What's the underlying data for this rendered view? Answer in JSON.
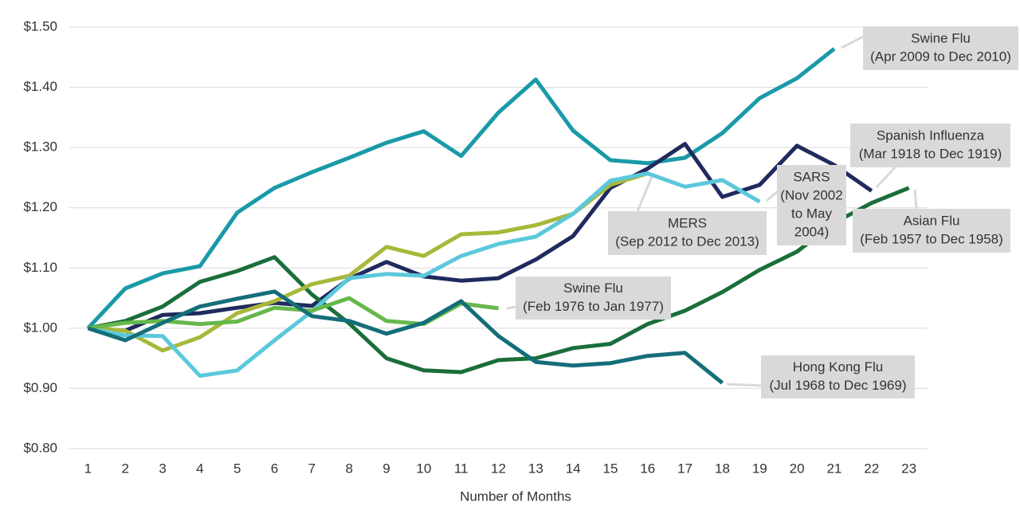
{
  "chart_data": {
    "type": "line",
    "x_label": "Number of Months",
    "categories": [
      "1",
      "2",
      "3",
      "4",
      "5",
      "6",
      "7",
      "8",
      "9",
      "10",
      "11",
      "12",
      "13",
      "14",
      "15",
      "16",
      "17",
      "18",
      "19",
      "20",
      "21",
      "22",
      "23"
    ],
    "ylim": [
      0.8,
      1.5
    ],
    "yticks": [
      {
        "value": 0.8,
        "label": "$0.80"
      },
      {
        "value": 0.9,
        "label": "$0.90"
      },
      {
        "value": 1.0,
        "label": "$1.00"
      },
      {
        "value": 1.1,
        "label": "$1.10"
      },
      {
        "value": 1.2,
        "label": "$1.20"
      },
      {
        "value": 1.3,
        "label": "$1.30"
      },
      {
        "value": 1.4,
        "label": "$1.40"
      },
      {
        "value": 1.5,
        "label": "$1.50"
      }
    ],
    "grid": true,
    "series": [
      {
        "label_lines": [
          "Swine Flu",
          "(Apr 2009 to Dec 2010)"
        ],
        "color": "#1a9aa8",
        "values": [
          1.0,
          1.066,
          1.091,
          1.103,
          1.192,
          1.233,
          1.259,
          1.283,
          1.308,
          1.327,
          1.286,
          1.358,
          1.413,
          1.328,
          1.279,
          1.274,
          1.283,
          1.324,
          1.382,
          1.415,
          1.464,
          null,
          null
        ]
      },
      {
        "label_lines": [
          "Spanish Influenza",
          "(Mar 1918 to Dec 1919)"
        ],
        "color": "#1f2a5e",
        "values": [
          1.0,
          0.996,
          1.022,
          1.025,
          1.034,
          1.042,
          1.037,
          1.082,
          1.11,
          1.086,
          1.079,
          1.083,
          1.114,
          1.153,
          1.233,
          1.265,
          1.306,
          1.218,
          1.238,
          1.303,
          1.271,
          1.228,
          null
        ]
      },
      {
        "label_lines": [
          "Asian Flu",
          "(Feb 1957 to Dec 1958)"
        ],
        "color": "#1a6e3a",
        "values": [
          1.0,
          1.012,
          1.036,
          1.077,
          1.095,
          1.118,
          1.056,
          1.008,
          0.95,
          0.93,
          0.927,
          0.947,
          0.95,
          0.967,
          0.974,
          1.007,
          1.029,
          1.06,
          1.097,
          1.127,
          1.175,
          1.208,
          1.233
        ]
      },
      {
        "label_lines": [
          "MERS",
          "(Sep 2012 to Dec 2013)"
        ],
        "color": "#a8b83a",
        "values": [
          1.0,
          0.996,
          0.963,
          0.985,
          1.025,
          1.045,
          1.073,
          1.087,
          1.135,
          1.12,
          1.156,
          1.159,
          1.171,
          1.19,
          1.238,
          1.257,
          null,
          null,
          null,
          null,
          null,
          null,
          null
        ]
      },
      {
        "label_lines": [
          "SARS",
          "(Nov 2002",
          "to May",
          "2004)"
        ],
        "color": "#5bc8dc",
        "values": [
          1.0,
          0.988,
          0.987,
          0.921,
          0.93,
          0.98,
          1.028,
          1.083,
          1.09,
          1.087,
          1.12,
          1.14,
          1.152,
          1.19,
          1.245,
          1.257,
          1.235,
          1.246,
          1.21,
          null,
          null,
          null,
          null
        ]
      },
      {
        "label_lines": [
          "Swine Flu",
          "(Feb 1976 to Jan 1977)"
        ],
        "color": "#66b84a",
        "values": [
          1.0,
          1.009,
          1.012,
          1.007,
          1.011,
          1.034,
          1.029,
          1.05,
          1.012,
          1.007,
          1.041,
          1.033,
          null,
          null,
          null,
          null,
          null,
          null,
          null,
          null,
          null,
          null,
          null
        ]
      },
      {
        "label_lines": [
          "Hong Kong Flu",
          "(Jul 1968 to Dec 1969)"
        ],
        "color": "#146e7a",
        "values": [
          1.0,
          0.98,
          1.009,
          1.036,
          1.049,
          1.061,
          1.02,
          1.012,
          0.991,
          1.009,
          1.045,
          0.987,
          0.944,
          0.938,
          0.942,
          0.954,
          0.959,
          0.909,
          null,
          null,
          null,
          null,
          null
        ]
      }
    ]
  }
}
